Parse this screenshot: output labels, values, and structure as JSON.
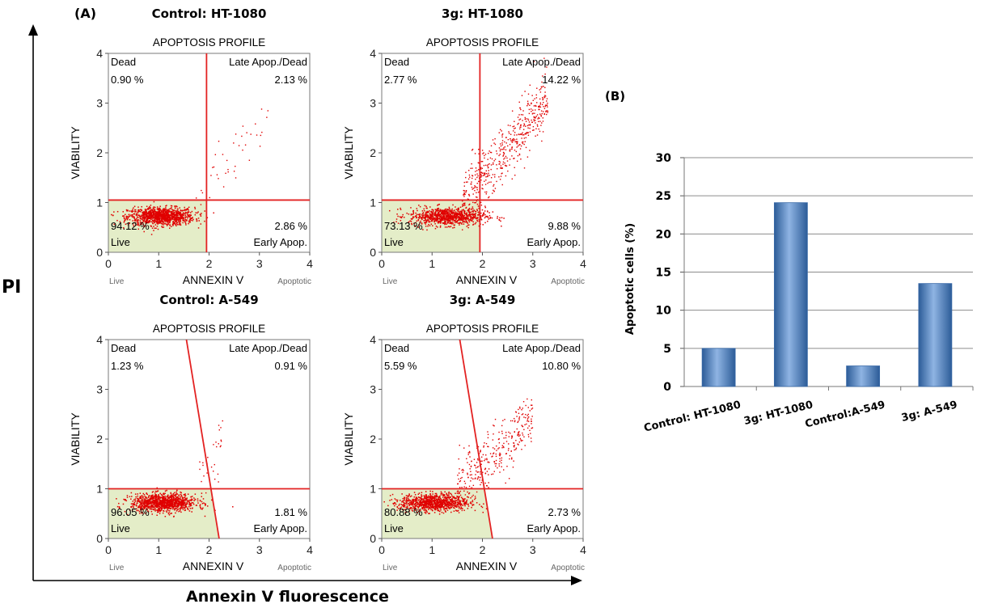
{
  "figure": {
    "panel_a_label": "(A)",
    "panel_b_label": "(B)",
    "y_axis_label": "PI",
    "x_axis_label": "Annexin V fluorescence"
  },
  "colors": {
    "dot": "#e00000",
    "gate": "#e32222",
    "live_fill": "#e4edc8",
    "bar_main": "#4f81bd",
    "bar_dark": "#2c5c98",
    "bar_light": "#8fb4e3",
    "grid": "#8c8c8c"
  },
  "chart_data": [
    {
      "type": "scatter",
      "title": "Control: HT-1080",
      "subtitle": "APOPTOSIS PROFILE",
      "xlabel": "ANNEXIN V",
      "ylabel": "VIABILITY",
      "x_left_label": "Live",
      "x_right_label": "Apoptotic",
      "xlim": [
        0,
        4
      ],
      "ylim": [
        0,
        4
      ],
      "xticks": [
        "0",
        "1",
        "2",
        "3",
        "4"
      ],
      "yticks": [
        "0",
        "1",
        "2",
        "3",
        "4"
      ],
      "gates": {
        "vertical": [
          [
            1.95,
            0
          ],
          [
            1.95,
            4
          ]
        ],
        "horizontal_y": 1.05
      },
      "quadrants": {
        "dead": {
          "label": "Dead",
          "value": "0.90 %"
        },
        "late": {
          "label": "Late Apop./Dead",
          "value": "2.13 %"
        },
        "live": {
          "label": "Live",
          "value": "94.12 %"
        },
        "early": {
          "label": "Early Apop.",
          "value": "2.86 %"
        }
      }
    },
    {
      "type": "scatter",
      "title": "3g: HT-1080",
      "subtitle": "APOPTOSIS PROFILE",
      "xlabel": "ANNEXIN V",
      "ylabel": "VIABILITY",
      "x_left_label": "Live",
      "x_right_label": "Apoptotic",
      "xlim": [
        0,
        4
      ],
      "ylim": [
        0,
        4
      ],
      "xticks": [
        "0",
        "1",
        "2",
        "3",
        "4"
      ],
      "yticks": [
        "0",
        "1",
        "2",
        "3",
        "4"
      ],
      "gates": {
        "vertical": [
          [
            1.95,
            0
          ],
          [
            1.95,
            4
          ]
        ],
        "horizontal_y": 1.05
      },
      "quadrants": {
        "dead": {
          "label": "Dead",
          "value": "2.77 %"
        },
        "late": {
          "label": "Late Apop./Dead",
          "value": "14.22 %"
        },
        "live": {
          "label": "Live",
          "value": "73.13 %"
        },
        "early": {
          "label": "Early Apop.",
          "value": "9.88 %"
        }
      }
    },
    {
      "type": "scatter",
      "title": "Control: A-549",
      "subtitle": "APOPTOSIS PROFILE",
      "xlabel": "ANNEXIN V",
      "ylabel": "VIABILITY",
      "x_left_label": "Live",
      "x_right_label": "Apoptotic",
      "xlim": [
        0,
        4
      ],
      "ylim": [
        0,
        4
      ],
      "xticks": [
        "0",
        "1",
        "2",
        "3",
        "4"
      ],
      "yticks": [
        "0",
        "1",
        "2",
        "3",
        "4"
      ],
      "gates": {
        "vertical": [
          [
            1.55,
            4
          ],
          [
            2.2,
            0
          ]
        ],
        "horizontal_y": 1.0
      },
      "quadrants": {
        "dead": {
          "label": "Dead",
          "value": "1.23 %"
        },
        "late": {
          "label": "Late Apop./Dead",
          "value": "0.91 %"
        },
        "live": {
          "label": "Live",
          "value": "96.05 %"
        },
        "early": {
          "label": "Early Apop.",
          "value": "1.81 %"
        }
      }
    },
    {
      "type": "scatter",
      "title": "3g: A-549",
      "subtitle": "APOPTOSIS PROFILE",
      "xlabel": "ANNEXIN V",
      "ylabel": "VIABILITY",
      "x_left_label": "Live",
      "x_right_label": "Apoptotic",
      "xlim": [
        0,
        4
      ],
      "ylim": [
        0,
        4
      ],
      "xticks": [
        "0",
        "1",
        "2",
        "3",
        "4"
      ],
      "yticks": [
        "0",
        "1",
        "2",
        "3",
        "4"
      ],
      "gates": {
        "vertical": [
          [
            1.55,
            4
          ],
          [
            2.2,
            0
          ]
        ],
        "horizontal_y": 1.0
      },
      "quadrants": {
        "dead": {
          "label": "Dead",
          "value": "5.59 %"
        },
        "late": {
          "label": "Late Apop./Dead",
          "value": "10.80 %"
        },
        "live": {
          "label": "Live",
          "value": "80.88 %"
        },
        "early": {
          "label": "Early Apop.",
          "value": "2.73 %"
        }
      }
    },
    {
      "type": "bar",
      "title": "",
      "xlabel": "",
      "ylabel": "Apoptotic cells (%)",
      "categories": [
        "Control:  HT-1080",
        "3g: HT-1080",
        "Control:A-549",
        "3g: A-549"
      ],
      "values": [
        5,
        24.1,
        2.7,
        13.5
      ],
      "ylim": [
        0,
        30
      ],
      "yticks": [
        "0",
        "5",
        "10",
        "15",
        "20",
        "25",
        "30"
      ],
      "grid": true,
      "legend": "none"
    }
  ]
}
